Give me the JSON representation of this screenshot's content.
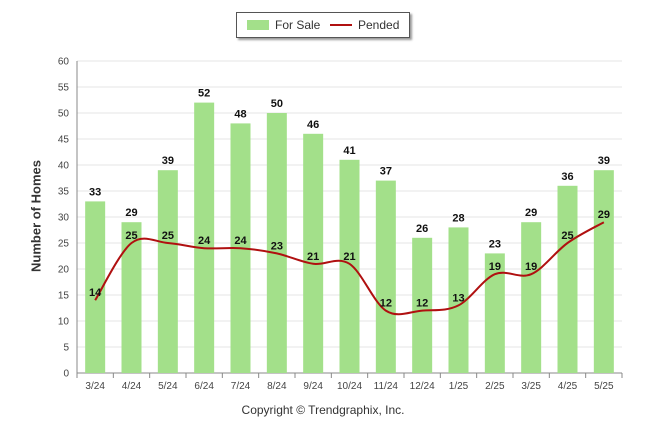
{
  "legend": {
    "for_sale_label": "For Sale",
    "pended_label": "Pended",
    "for_sale_color": "#a3e08a",
    "pended_color": "#b01010"
  },
  "copyright": "Copyright © Trendgraphix, Inc.",
  "chart_data": {
    "type": "bar",
    "categories": [
      "3/24",
      "4/24",
      "5/24",
      "6/24",
      "7/24",
      "8/24",
      "9/24",
      "10/24",
      "11/24",
      "12/24",
      "1/25",
      "2/25",
      "3/25",
      "4/25",
      "5/25"
    ],
    "series": [
      {
        "name": "For Sale",
        "type": "bar",
        "values": [
          33,
          29,
          39,
          52,
          48,
          50,
          46,
          41,
          37,
          26,
          28,
          23,
          29,
          36,
          39
        ]
      },
      {
        "name": "Pended",
        "type": "line",
        "values": [
          14,
          25,
          25,
          24,
          24,
          23,
          21,
          21,
          12,
          12,
          13,
          19,
          19,
          25,
          29
        ]
      }
    ],
    "ylabel": "Number of Homes",
    "xlabel": "",
    "ylim": [
      0,
      60
    ],
    "yticks": [
      0,
      5,
      10,
      15,
      20,
      25,
      30,
      35,
      40,
      45,
      50,
      55,
      60
    ],
    "grid": true,
    "legend_position": "top-center"
  }
}
